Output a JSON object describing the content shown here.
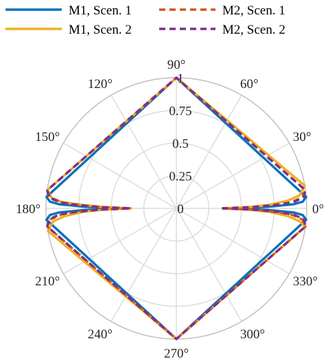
{
  "chart_data": {
    "type": "polar-line",
    "theta_ticks": [
      "0°",
      "30°",
      "60°",
      "90°",
      "120°",
      "150°",
      "180°",
      "210°",
      "240°",
      "270°",
      "300°",
      "330°"
    ],
    "theta_tick_values_deg": [
      0,
      30,
      60,
      90,
      120,
      150,
      180,
      210,
      240,
      270,
      300,
      330
    ],
    "r_ticks": [
      "0",
      "0.25",
      "0.5",
      "0.75",
      "1"
    ],
    "r_tick_values": [
      0,
      0.25,
      0.5,
      0.75,
      1
    ],
    "rlim": [
      0,
      1
    ],
    "grid": true,
    "legend_position": "top",
    "series": [
      {
        "name": "M1, Scen. 1",
        "color": "#0072BD",
        "dash": "solid",
        "points": [
          [
            0,
            0.35
          ],
          [
            0.5,
            0.52
          ],
          [
            1,
            0.7
          ],
          [
            2,
            0.9
          ],
          [
            3,
            0.97
          ],
          [
            5,
            1.0
          ],
          [
            90,
            1.0
          ],
          [
            175,
            1.0
          ],
          [
            177,
            0.97
          ],
          [
            178,
            0.9
          ],
          [
            179,
            0.7
          ],
          [
            179.5,
            0.52
          ],
          [
            180,
            0.35
          ],
          [
            180.5,
            0.52
          ],
          [
            181,
            0.7
          ],
          [
            182,
            0.9
          ],
          [
            183,
            0.97
          ],
          [
            185,
            1.0
          ],
          [
            270,
            1.0
          ],
          [
            355,
            1.0
          ],
          [
            357,
            0.97
          ],
          [
            358,
            0.9
          ],
          [
            359,
            0.7
          ],
          [
            359.5,
            0.52
          ],
          [
            360,
            0.35
          ]
        ]
      },
      {
        "name": "M1, Scen. 2",
        "color": "#EDB120",
        "dash": "solid",
        "points": [
          [
            0,
            0.35
          ],
          [
            1,
            0.55
          ],
          [
            2,
            0.7
          ],
          [
            4,
            0.86
          ],
          [
            6,
            0.95
          ],
          [
            10,
            1.0
          ],
          [
            90,
            1.0
          ],
          [
            172,
            1.0
          ],
          [
            176,
            0.95
          ],
          [
            177,
            0.86
          ],
          [
            178,
            0.7
          ],
          [
            179,
            0.55
          ],
          [
            180,
            0.35
          ],
          [
            181,
            0.55
          ],
          [
            182,
            0.7
          ],
          [
            184,
            0.86
          ],
          [
            186,
            0.95
          ],
          [
            190,
            1.0
          ],
          [
            270,
            1.0
          ],
          [
            352,
            1.0
          ],
          [
            354,
            0.95
          ],
          [
            356,
            0.86
          ],
          [
            358,
            0.7
          ],
          [
            359,
            0.55
          ],
          [
            360,
            0.35
          ]
        ]
      },
      {
        "name": "M2, Scen. 1",
        "color": "#D95319",
        "dash": "dashed",
        "points": [
          [
            0,
            0.35
          ],
          [
            1,
            0.58
          ],
          [
            2,
            0.75
          ],
          [
            3,
            0.88
          ],
          [
            5,
            0.97
          ],
          [
            8,
            1.0
          ],
          [
            90,
            1.0
          ],
          [
            172,
            1.0
          ],
          [
            175,
            0.97
          ],
          [
            177,
            0.88
          ],
          [
            178,
            0.75
          ],
          [
            179,
            0.58
          ],
          [
            180,
            0.35
          ],
          [
            181,
            0.58
          ],
          [
            182,
            0.75
          ],
          [
            183,
            0.88
          ],
          [
            185,
            0.97
          ],
          [
            188,
            1.0
          ],
          [
            270,
            1.0
          ],
          [
            352,
            1.0
          ],
          [
            355,
            0.97
          ],
          [
            357,
            0.88
          ],
          [
            358,
            0.75
          ],
          [
            359,
            0.58
          ],
          [
            360,
            0.35
          ]
        ]
      },
      {
        "name": "M2, Scen. 2",
        "color": "#7E2F8E",
        "dash": "dashed",
        "points": [
          [
            0,
            0.35
          ],
          [
            1,
            0.6
          ],
          [
            2,
            0.78
          ],
          [
            3,
            0.9
          ],
          [
            5,
            0.98
          ],
          [
            8,
            1.0
          ],
          [
            90,
            1.0
          ],
          [
            172,
            1.0
          ],
          [
            175,
            0.98
          ],
          [
            177,
            0.9
          ],
          [
            178,
            0.78
          ],
          [
            179,
            0.6
          ],
          [
            180,
            0.35
          ],
          [
            181,
            0.6
          ],
          [
            182,
            0.78
          ],
          [
            183,
            0.9
          ],
          [
            185,
            0.98
          ],
          [
            188,
            1.0
          ],
          [
            270,
            1.0
          ],
          [
            352,
            1.0
          ],
          [
            355,
            0.98
          ],
          [
            357,
            0.9
          ],
          [
            358,
            0.78
          ],
          [
            359,
            0.6
          ],
          [
            360,
            0.35
          ]
        ]
      }
    ]
  }
}
